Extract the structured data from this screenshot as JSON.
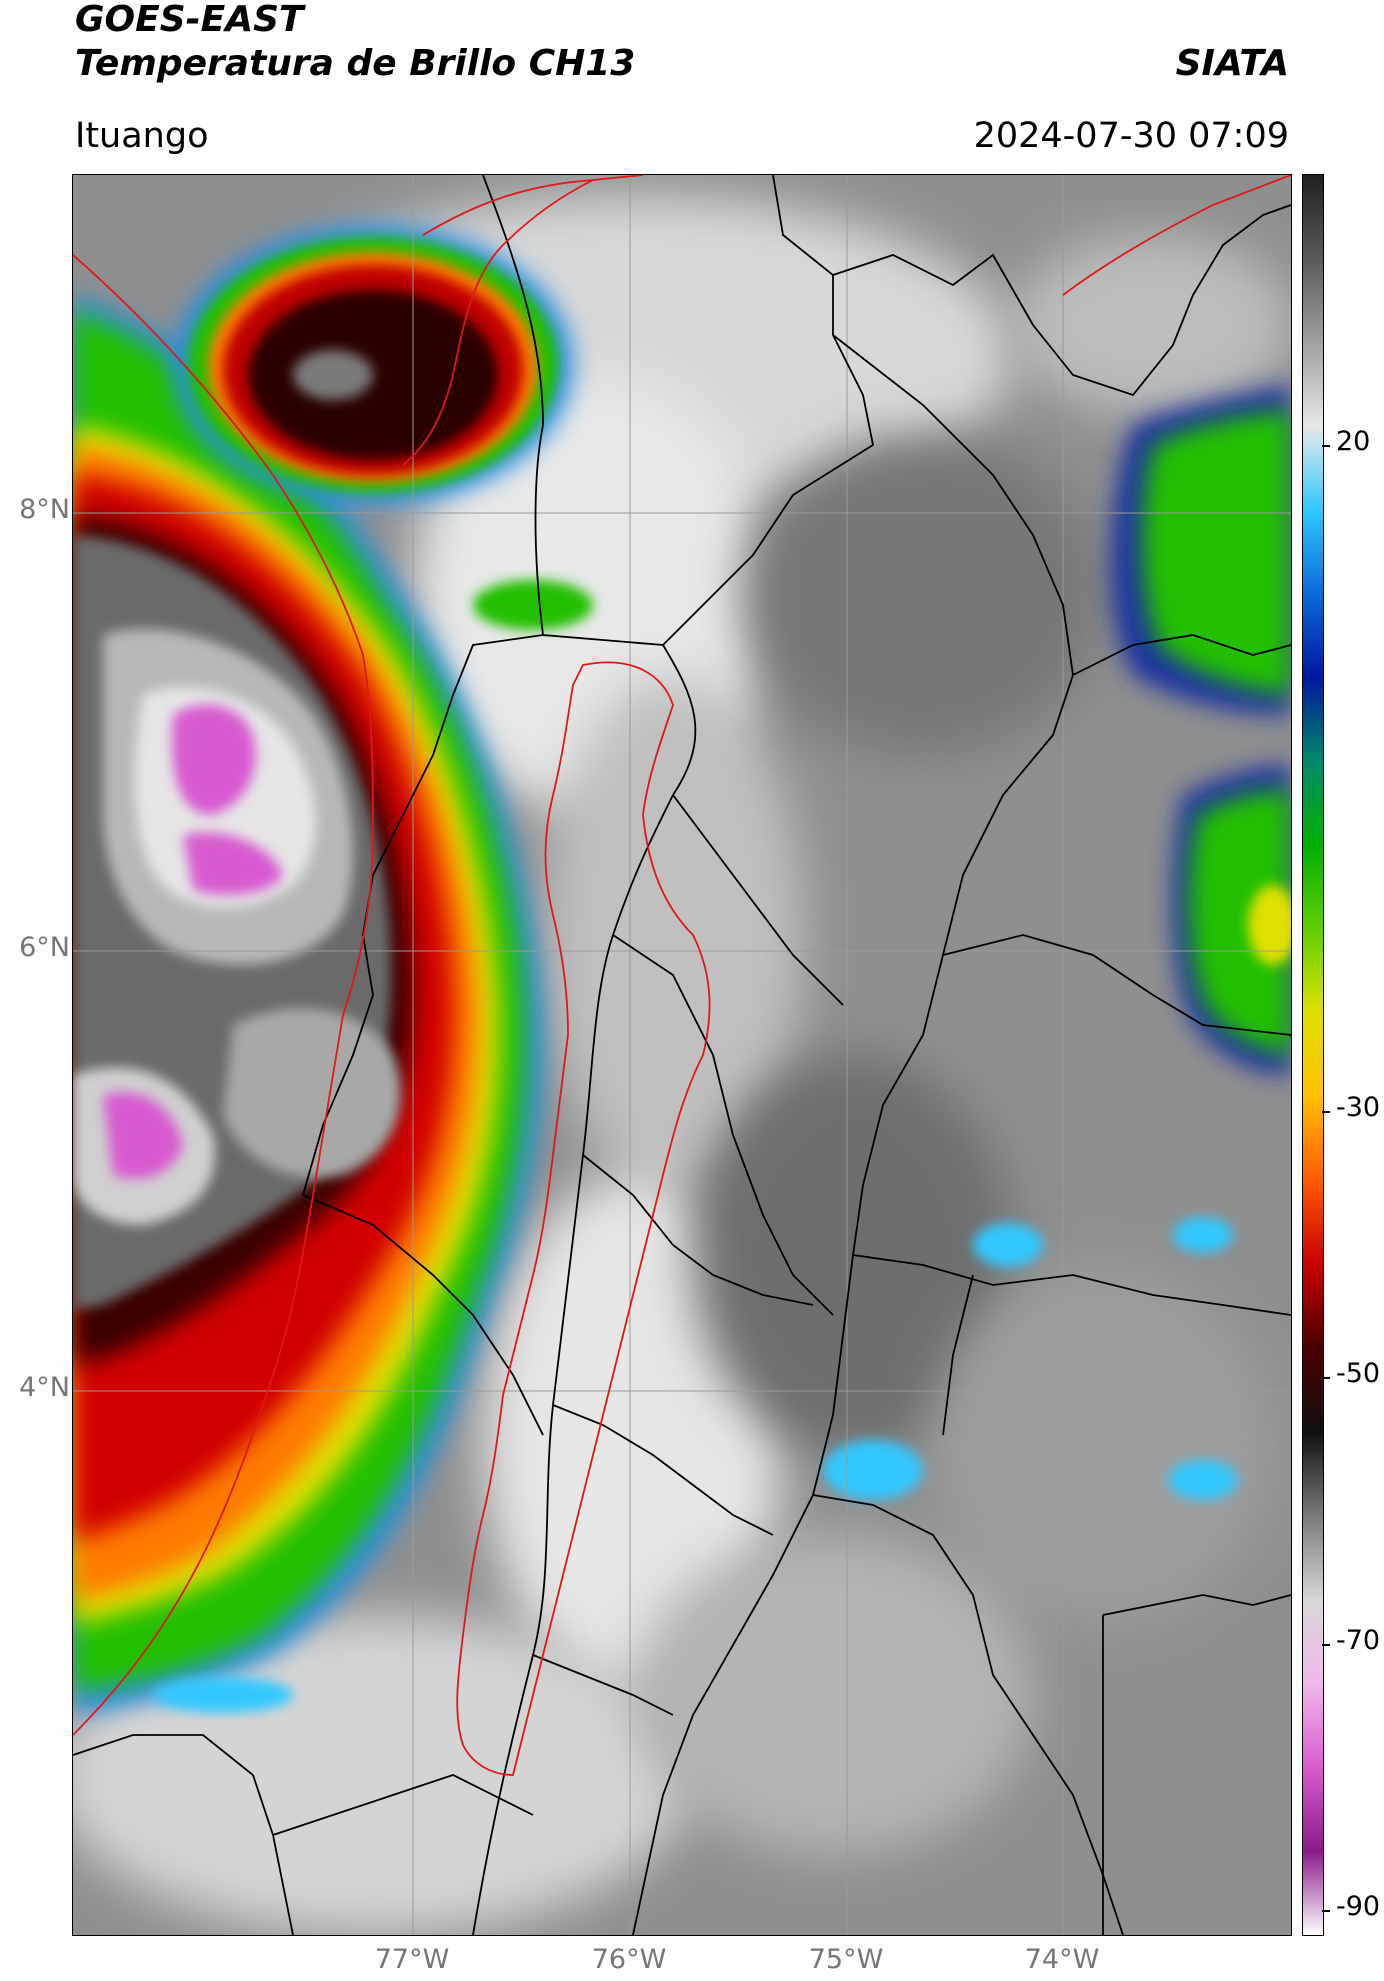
{
  "header": {
    "title_line1": "GOES-EAST",
    "title_line2": "Temperatura de Brillo CH13",
    "org": "SIATA",
    "location": "Ituango",
    "datetime": "2024-07-30 07:09"
  },
  "map": {
    "lat_labels": [
      "8°N",
      "6°N",
      "4°N"
    ],
    "lon_labels": [
      "77°W",
      "76°W",
      "75°W",
      "74°W"
    ],
    "colors": {
      "border": "#000000",
      "basin": "#e0171a",
      "grid": "#9a9a9a"
    }
  },
  "colorbar": {
    "labels": [
      "20",
      "-30",
      "-50",
      "-70",
      "-90"
    ],
    "colors": [
      "#ffffff",
      "#8a1a8a",
      "#d95bd0",
      "#f0b8ea",
      "#d8d8d8",
      "#7a7a7a",
      "#101010",
      "#4a0000",
      "#c80000",
      "#ff5a00",
      "#ffc000",
      "#e0e000",
      "#60d000",
      "#00b000",
      "#008a6a",
      "#0018a0",
      "#0a6ad8",
      "#30c8ff",
      "#e8e8e8",
      "#a0a0a0",
      "#5a5a5a",
      "#202020"
    ]
  }
}
